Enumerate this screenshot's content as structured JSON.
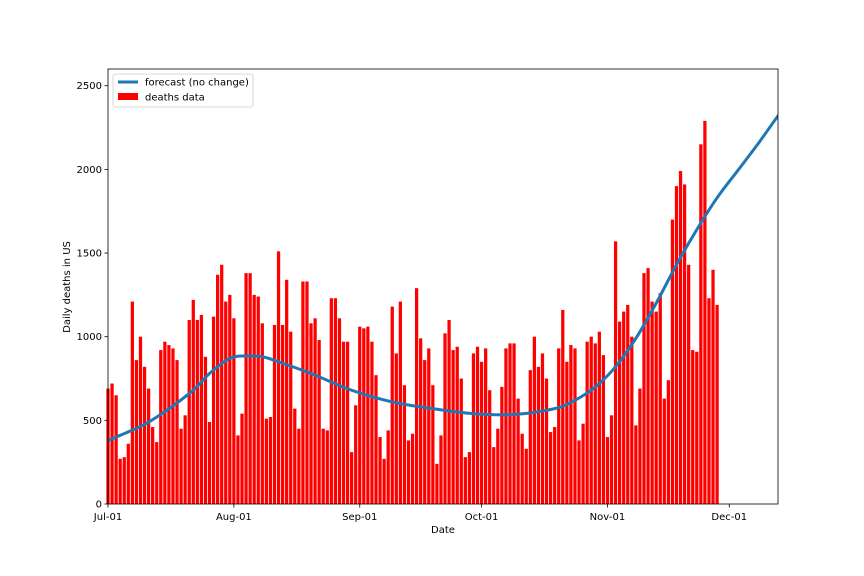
{
  "chart_data": {
    "type": "bar",
    "title": "",
    "xlabel": "Date",
    "ylabel": "Daily deaths in US",
    "x_ticks": [
      "Jul-01",
      "Aug-01",
      "Sep-01",
      "Oct-01",
      "Nov-01",
      "Dec-01"
    ],
    "x_range_days": [
      0,
      165
    ],
    "x_tick_days": [
      0,
      31,
      62,
      92,
      123,
      153
    ],
    "ylim": [
      0,
      2600
    ],
    "y_ticks": [
      0,
      500,
      1000,
      1500,
      2000,
      2500
    ],
    "grid": false,
    "legend_position": "upper left",
    "colors": {
      "bars": "#ff0000",
      "line": "#1f77b4"
    },
    "series": [
      {
        "name": "deaths data",
        "type": "bar",
        "color": "#ff0000",
        "start_date": "Jul-01",
        "values": [
          690,
          720,
          650,
          270,
          280,
          360,
          1210,
          860,
          1000,
          820,
          690,
          460,
          370,
          920,
          970,
          950,
          930,
          860,
          450,
          530,
          1100,
          1220,
          1100,
          1130,
          880,
          490,
          1120,
          1370,
          1430,
          1210,
          1250,
          1110,
          410,
          540,
          1380,
          1380,
          1250,
          1240,
          1080,
          510,
          520,
          1070,
          1510,
          1070,
          1340,
          1030,
          570,
          450,
          1330,
          1330,
          1080,
          1110,
          980,
          450,
          440,
          1230,
          1230,
          1110,
          970,
          970,
          310,
          590,
          1060,
          1050,
          1060,
          970,
          770,
          400,
          270,
          440,
          1180,
          900,
          1210,
          710,
          380,
          420,
          1290,
          990,
          860,
          930,
          710,
          240,
          410,
          1020,
          1100,
          920,
          940,
          750,
          280,
          310,
          900,
          940,
          850,
          930,
          680,
          340,
          450,
          700,
          930,
          960,
          960,
          630,
          420,
          330,
          800,
          1000,
          820,
          900,
          750,
          430,
          460,
          930,
          1160,
          850,
          950,
          930,
          380,
          480,
          970,
          1000,
          960,
          1030,
          890,
          400,
          530,
          1570,
          1090,
          1150,
          1190,
          1000,
          470,
          690,
          1380,
          1410,
          1210,
          1150,
          1260,
          630,
          740,
          1700,
          1900,
          1990,
          1910,
          1430,
          920,
          910,
          2150,
          2290,
          1230,
          1400,
          1190
        ]
      },
      {
        "name": "forecast (no change)",
        "type": "line",
        "color": "#1f77b4",
        "points": [
          [
            0,
            380
          ],
          [
            10,
            490
          ],
          [
            20,
            660
          ],
          [
            25,
            780
          ],
          [
            30,
            870
          ],
          [
            34,
            885
          ],
          [
            38,
            880
          ],
          [
            42,
            850
          ],
          [
            50,
            780
          ],
          [
            60,
            680
          ],
          [
            70,
            610
          ],
          [
            80,
            570
          ],
          [
            90,
            540
          ],
          [
            100,
            535
          ],
          [
            110,
            570
          ],
          [
            115,
            620
          ],
          [
            120,
            700
          ],
          [
            125,
            820
          ],
          [
            130,
            990
          ],
          [
            135,
            1200
          ],
          [
            140,
            1430
          ],
          [
            145,
            1640
          ],
          [
            150,
            1830
          ],
          [
            155,
            1990
          ],
          [
            160,
            2150
          ],
          [
            165,
            2320
          ],
          [
            170,
            2480
          ]
        ]
      }
    ]
  }
}
